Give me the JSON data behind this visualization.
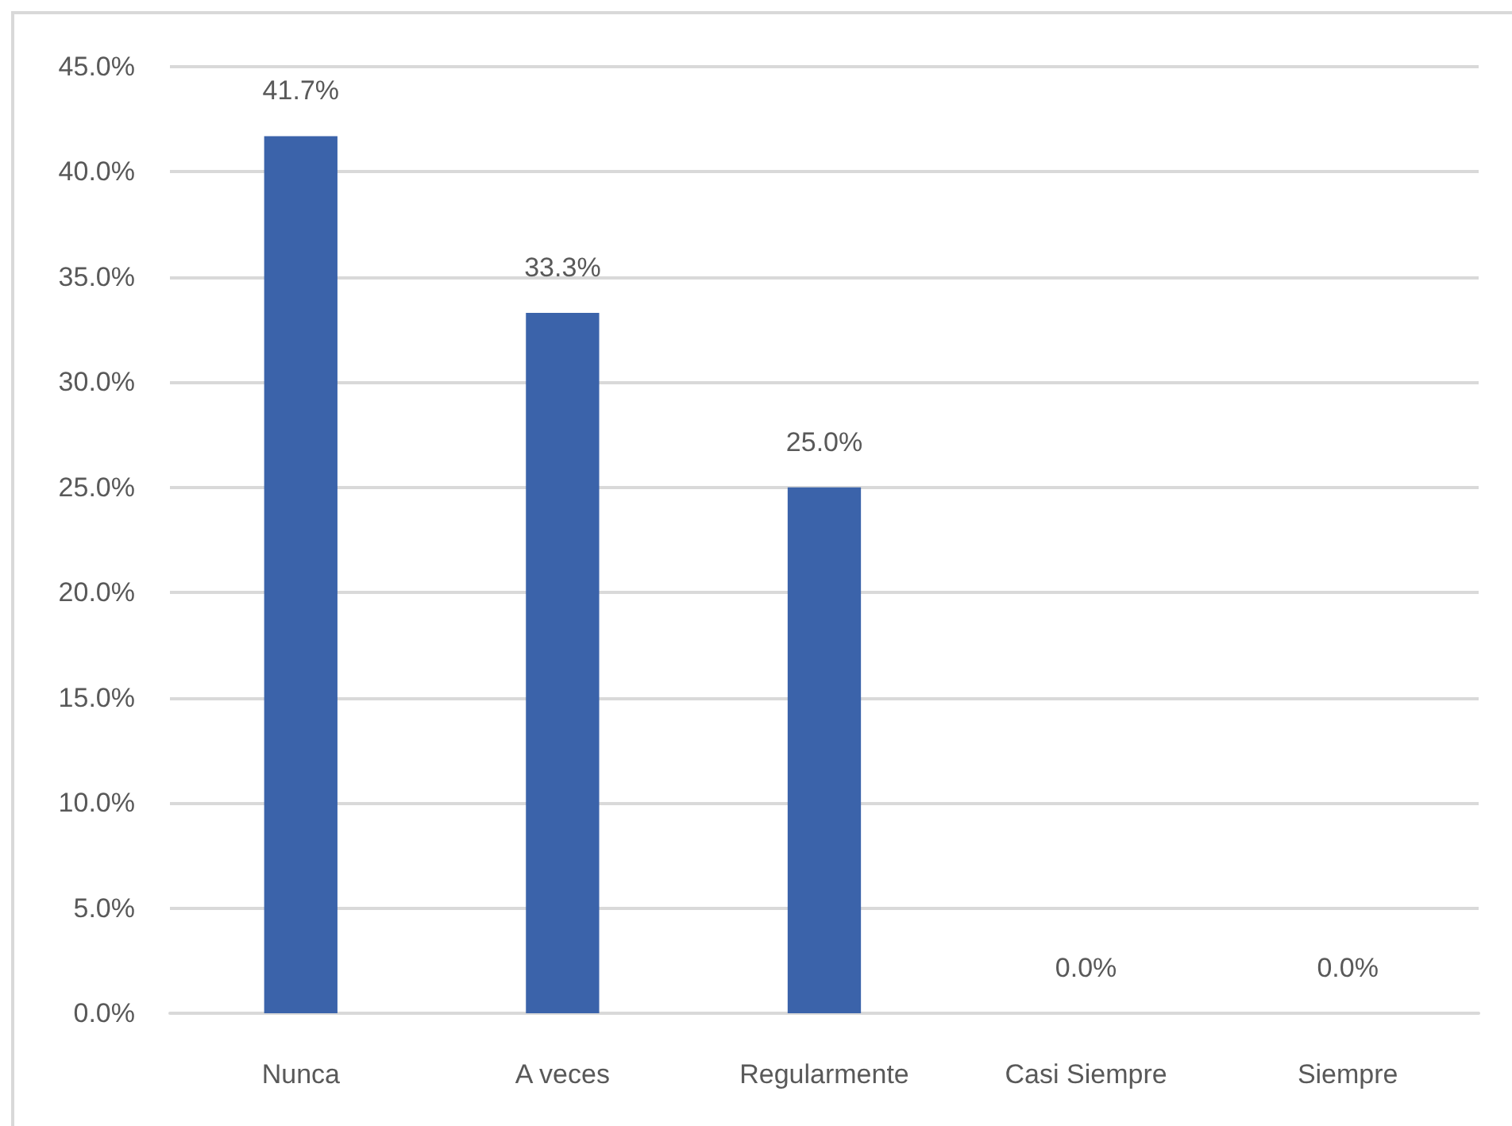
{
  "chart_data": {
    "type": "bar",
    "categories": [
      "Nunca",
      "A veces",
      "Regularmente",
      "Casi Siempre",
      "Siempre"
    ],
    "values": [
      41.7,
      33.3,
      25.0,
      0,
      0
    ],
    "value_labels": [
      "41.7%",
      "33.3%",
      "25.0%",
      "0.0%",
      "0.0%"
    ],
    "color": "#3b63aa",
    "ylim": [
      0,
      45
    ],
    "yticks": [
      {
        "value": 0,
        "label": "0.0%"
      },
      {
        "value": 5,
        "label": "5.0%"
      },
      {
        "value": 10,
        "label": "10.0%"
      },
      {
        "value": 15,
        "label": "15.0%"
      },
      {
        "value": 20,
        "label": "20.0%"
      },
      {
        "value": 25,
        "label": "25.0%"
      },
      {
        "value": 30,
        "label": "30.0%"
      },
      {
        "value": 35,
        "label": "35.0%"
      },
      {
        "value": 40,
        "label": "40.0%"
      },
      {
        "value": 45,
        "label": "45.0%"
      }
    ],
    "grid": "y"
  }
}
